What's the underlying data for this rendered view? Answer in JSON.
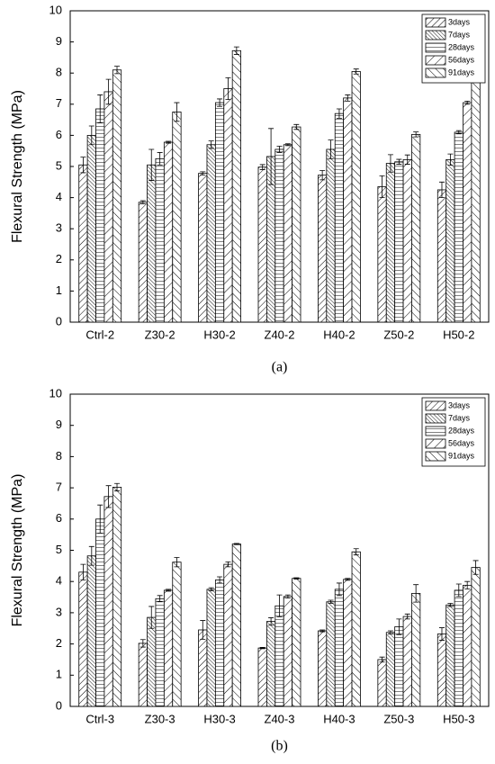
{
  "chart_data": [
    {
      "type": "bar",
      "y_label": "Flexural Strength (MPa)",
      "caption": "(a)",
      "categories": [
        "Ctrl-2",
        "Z30-2",
        "H30-2",
        "Z40-2",
        "H40-2",
        "Z50-2",
        "H50-2"
      ],
      "series": [
        {
          "name": "3days",
          "color": "#000000",
          "values": [
            5.05,
            3.85,
            4.78,
            4.98,
            4.72,
            4.35,
            4.25
          ],
          "errors": [
            0.25,
            0.05,
            0.05,
            0.08,
            0.15,
            0.35,
            0.25
          ]
        },
        {
          "name": "7days",
          "color": "#000000",
          "values": [
            6.0,
            5.05,
            5.7,
            5.32,
            5.55,
            5.1,
            5.22
          ],
          "errors": [
            0.3,
            0.5,
            0.12,
            0.9,
            0.3,
            0.28,
            0.18
          ]
        },
        {
          "name": "28days",
          "color": "#000000",
          "values": [
            6.85,
            5.25,
            7.05,
            5.55,
            6.7,
            5.15,
            6.1
          ],
          "errors": [
            0.45,
            0.2,
            0.12,
            0.1,
            0.15,
            0.08,
            0.05
          ]
        },
        {
          "name": "56days",
          "color": "#000000",
          "values": [
            7.4,
            5.78,
            7.5,
            5.7,
            7.2,
            5.22,
            7.05
          ],
          "errors": [
            0.4,
            0.03,
            0.35,
            0.03,
            0.1,
            0.15,
            0.05
          ]
        },
        {
          "name": "91days",
          "color": "#000000",
          "values": [
            8.1,
            6.75,
            8.72,
            6.27,
            8.05,
            6.03,
            7.85
          ],
          "errors": [
            0.12,
            0.3,
            0.12,
            0.08,
            0.08,
            0.08,
            0.1
          ]
        }
      ],
      "ylim": [
        0,
        10
      ],
      "yticks": [
        0,
        1,
        2,
        3,
        4,
        5,
        6,
        7,
        8,
        9,
        10
      ],
      "legend": "upper right"
    },
    {
      "type": "bar",
      "y_label": "Flexural Strength (MPa)",
      "caption": "(b)",
      "categories": [
        "Ctrl-3",
        "Z30-3",
        "H30-3",
        "Z40-3",
        "H40-3",
        "Z50-3",
        "H50-3"
      ],
      "series": [
        {
          "name": "3days",
          "color": "#000000",
          "values": [
            4.3,
            2.02,
            2.45,
            1.87,
            2.42,
            1.5,
            2.32
          ],
          "errors": [
            0.25,
            0.12,
            0.3,
            0.02,
            0.03,
            0.08,
            0.2
          ]
        },
        {
          "name": "7days",
          "color": "#000000",
          "values": [
            4.82,
            2.85,
            3.75,
            2.72,
            3.35,
            2.37,
            3.25
          ],
          "errors": [
            0.3,
            0.35,
            0.05,
            0.12,
            0.05,
            0.05,
            0.05
          ]
        },
        {
          "name": "28days",
          "color": "#000000",
          "values": [
            6.0,
            3.45,
            4.05,
            3.22,
            3.75,
            2.55,
            3.72
          ],
          "errors": [
            0.45,
            0.1,
            0.1,
            0.35,
            0.2,
            0.25,
            0.2
          ]
        },
        {
          "name": "56days",
          "color": "#000000",
          "values": [
            6.72,
            3.72,
            4.55,
            3.52,
            4.07,
            2.88,
            3.88
          ],
          "errors": [
            0.35,
            0.03,
            0.08,
            0.05,
            0.03,
            0.08,
            0.12
          ]
        },
        {
          "name": "91days",
          "color": "#000000",
          "values": [
            7.02,
            4.62,
            5.2,
            4.1,
            4.95,
            3.62,
            4.45
          ],
          "errors": [
            0.12,
            0.15,
            0.02,
            0.02,
            0.1,
            0.28,
            0.22
          ]
        }
      ],
      "ylim": [
        0,
        10
      ],
      "yticks": [
        0,
        1,
        2,
        3,
        4,
        5,
        6,
        7,
        8,
        9,
        10
      ],
      "legend": "upper right"
    }
  ]
}
